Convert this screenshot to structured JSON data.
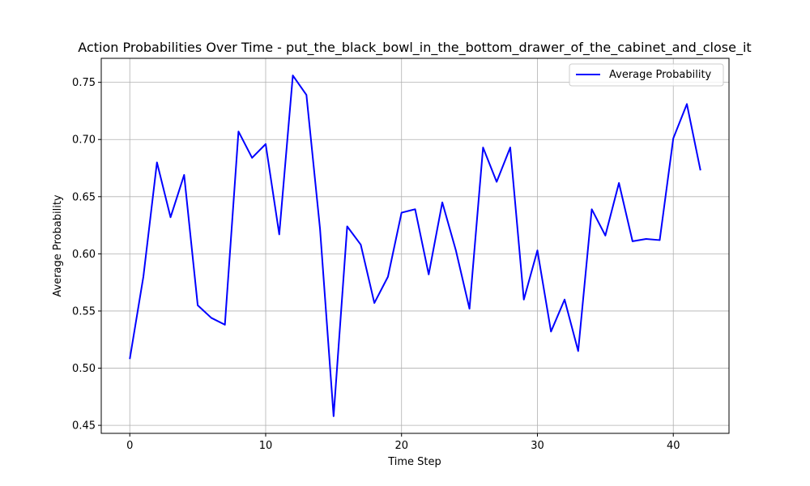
{
  "chart_data": {
    "type": "line",
    "title": "Action Probabilities Over Time - put_the_black_bowl_in_the_bottom_drawer_of_the_cabinet_and_close_it",
    "xlabel": "Time Step",
    "ylabel": "Average Probability",
    "xlim": [
      -2.1,
      44.1
    ],
    "ylim": [
      0.443,
      0.771
    ],
    "xticks": [
      0,
      10,
      20,
      30,
      40
    ],
    "yticks": [
      0.45,
      0.5,
      0.55,
      0.6,
      0.65,
      0.7,
      0.75
    ],
    "ytick_labels": [
      "0.45",
      "0.50",
      "0.55",
      "0.60",
      "0.65",
      "0.70",
      "0.75"
    ],
    "grid": true,
    "legend_position": "upper-right",
    "series": [
      {
        "name": "Average Probability",
        "color": "#0000ff",
        "x": [
          0,
          1,
          2,
          3,
          4,
          5,
          6,
          7,
          8,
          9,
          10,
          11,
          12,
          13,
          14,
          15,
          16,
          17,
          18,
          19,
          20,
          21,
          22,
          23,
          24,
          25,
          26,
          27,
          28,
          29,
          30,
          31,
          32,
          33,
          34,
          35,
          36,
          37,
          38,
          39,
          40,
          41,
          42
        ],
        "values": [
          0.508,
          0.58,
          0.68,
          0.632,
          0.669,
          0.555,
          0.544,
          0.538,
          0.707,
          0.684,
          0.696,
          0.617,
          0.756,
          0.739,
          0.622,
          0.458,
          0.624,
          0.608,
          0.557,
          0.58,
          0.636,
          0.639,
          0.582,
          0.645,
          0.603,
          0.552,
          0.693,
          0.663,
          0.693,
          0.56,
          0.603,
          0.532,
          0.56,
          0.515,
          0.639,
          0.616,
          0.662,
          0.611,
          0.613,
          0.612,
          0.701,
          0.731,
          0.673
        ]
      }
    ]
  }
}
